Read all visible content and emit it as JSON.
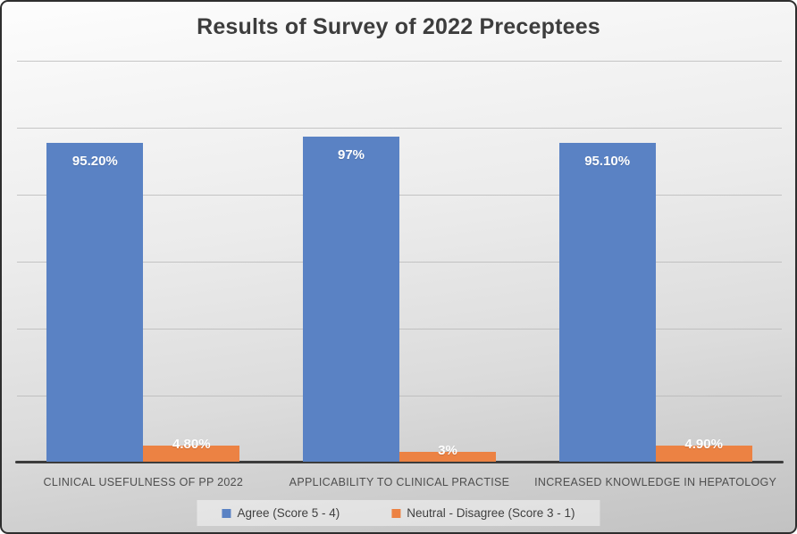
{
  "title": "Results of Survey of 2022 Preceptees",
  "chart_data": {
    "type": "bar",
    "title": "Results of Survey of 2022 Preceptees",
    "xlabel": "",
    "ylabel": "",
    "ylim": [
      0,
      120
    ],
    "gridline_step": 20,
    "grid": true,
    "y_axis_tick_labels_visible": false,
    "legend_position": "bottom",
    "categories": [
      "CLINICAL USEFULNESS OF PP 2022",
      "APPLICABILITY TO CLINICAL PRACTISE",
      "INCREASED KNOWLEDGE IN HEPATOLOGY"
    ],
    "series": [
      {
        "name": "Agree (Score 5 - 4)",
        "color": "#5a82c4",
        "values": [
          95.2,
          97,
          95.1
        ],
        "labels": [
          "95.20%",
          "97%",
          "95.10%"
        ]
      },
      {
        "name": "Neutral - Disagree (Score 3 - 1)",
        "color": "#ec8243",
        "values": [
          4.8,
          3,
          4.9
        ],
        "labels": [
          "4.80%",
          "3%",
          "4.90%"
        ]
      }
    ]
  },
  "legend": {
    "items": [
      {
        "label": "Agree (Score 5 - 4)",
        "color": "#5a82c4"
      },
      {
        "label": "Neutral - Disagree (Score 3 - 1)",
        "color": "#ec8243"
      }
    ]
  },
  "colors": {
    "agree_bar": "#5a82c4",
    "neutral_bar": "#ec8243",
    "baseline": "#3c3c3c",
    "gridline": "#b5b5b5",
    "title_text": "#3d3d3d",
    "axis_text": "#4e4e4e",
    "frame_border": "#2e2e2e"
  }
}
